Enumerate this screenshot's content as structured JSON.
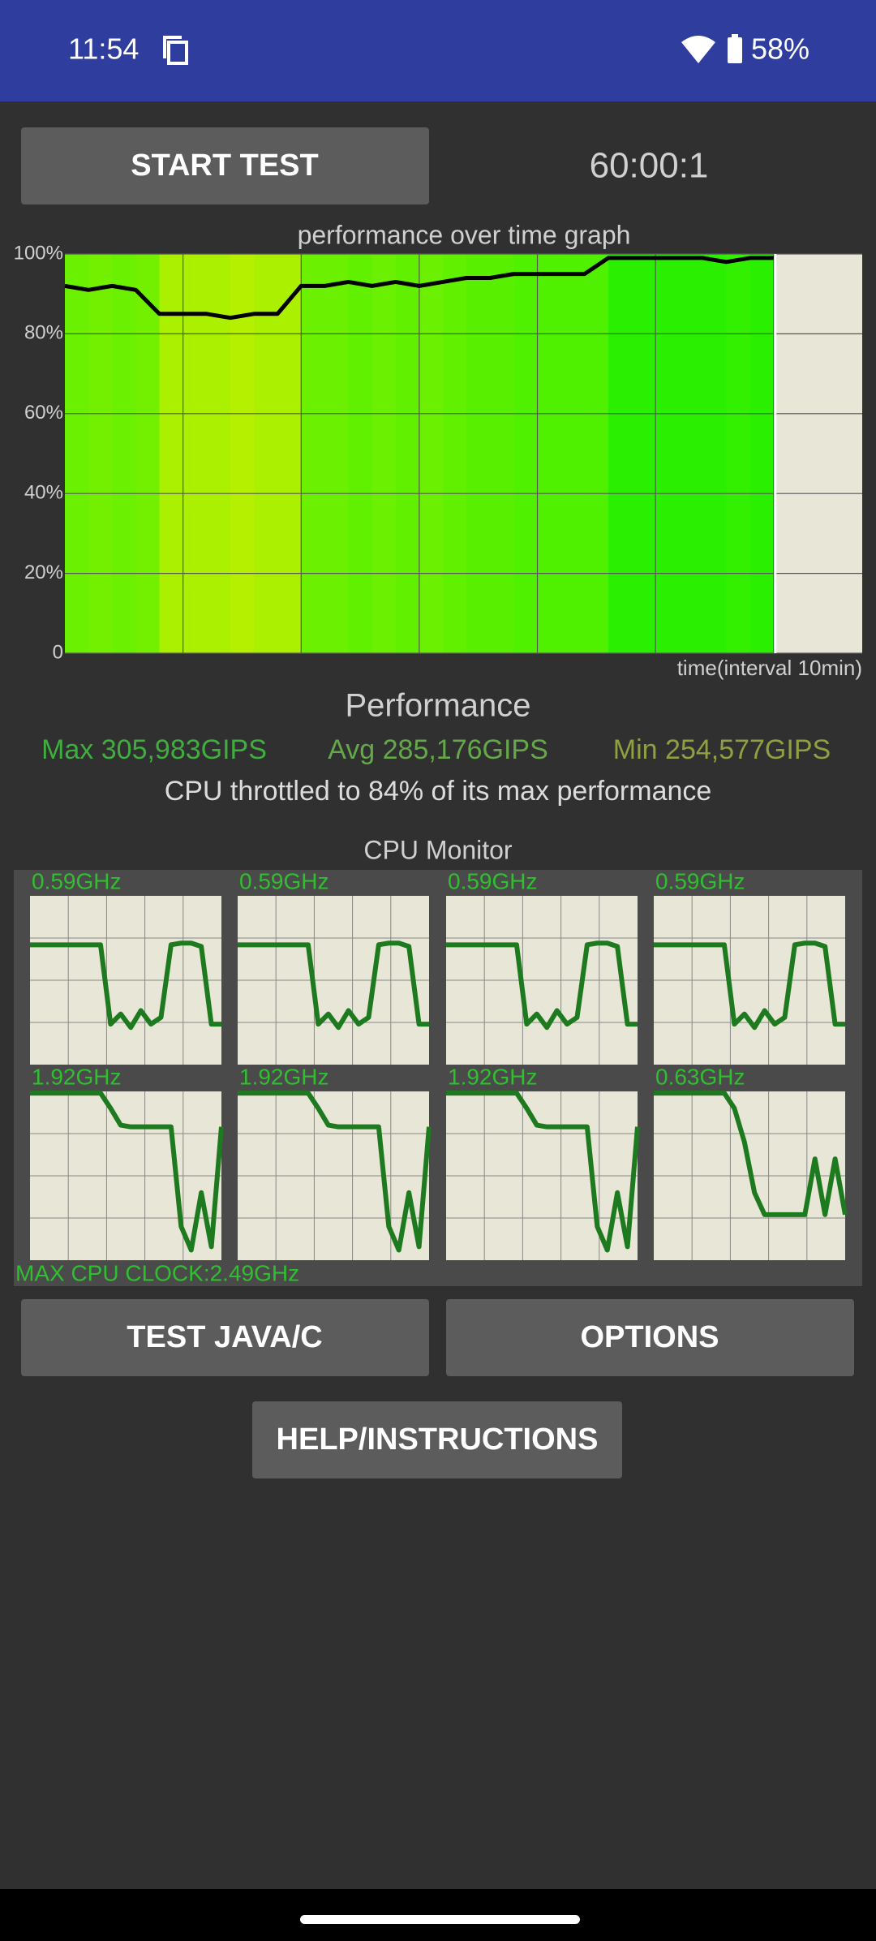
{
  "status_bar": {
    "time": "11:54",
    "battery": "58%"
  },
  "buttons": {
    "start": "START TEST",
    "test": "TEST JAVA/C",
    "options": "OPTIONS",
    "help": "HELP/INSTRUCTIONS"
  },
  "timer": "60:00:1",
  "chart_data": {
    "type": "line",
    "title": "performance over time graph",
    "x_label": "time(interval 10min)",
    "x": [
      0,
      2,
      4,
      6,
      8,
      10,
      12,
      14,
      16,
      18,
      20,
      22,
      24,
      26,
      28,
      30,
      32,
      34,
      36,
      38,
      40,
      42,
      44,
      46,
      48,
      50,
      52,
      54,
      56,
      58,
      60
    ],
    "xlim": [
      0,
      67.5
    ],
    "xticks": [
      10,
      20,
      30,
      40,
      50,
      60
    ],
    "ylim": [
      0,
      100
    ],
    "yticks": [
      0,
      {
        "value": 20,
        "label": "20%"
      },
      {
        "value": 40,
        "label": "40%"
      },
      {
        "value": 60,
        "label": "60%"
      },
      {
        "value": 80,
        "label": "80%"
      },
      {
        "value": 100,
        "label": "100%"
      }
    ],
    "grid": true,
    "series": [
      {
        "color": "#000000",
        "values": [
          92,
          91,
          92,
          91,
          85,
          85,
          85,
          84,
          85,
          85,
          92,
          92,
          93,
          92,
          93,
          92,
          93,
          94,
          94,
          95,
          95,
          95,
          95,
          99,
          99,
          99,
          99,
          99,
          98,
          99,
          99
        ]
      }
    ]
  },
  "performance": {
    "heading": "Performance",
    "max": "Max 305,983GIPS",
    "avg": "Avg 285,176GIPS",
    "min": "Min 254,577GIPS",
    "throttle": "CPU throttled to 84% of its max performance"
  },
  "cpu_monitor": {
    "title": "CPU Monitor",
    "max_clock": "MAX CPU CLOCK:2.49GHz",
    "ylim": [
      0,
      100
    ],
    "color": "#1e7a1e",
    "cores": [
      {
        "label": "0.59GHz",
        "values": [
          71,
          71,
          71,
          71,
          71,
          71,
          71,
          71,
          24,
          30,
          22,
          32,
          24,
          28,
          71,
          72,
          72,
          70,
          24,
          24
        ]
      },
      {
        "label": "0.59GHz",
        "values": [
          71,
          71,
          71,
          71,
          71,
          71,
          71,
          71,
          24,
          30,
          22,
          32,
          24,
          28,
          71,
          72,
          72,
          70,
          24,
          24
        ]
      },
      {
        "label": "0.59GHz",
        "values": [
          71,
          71,
          71,
          71,
          71,
          71,
          71,
          71,
          24,
          30,
          22,
          32,
          24,
          28,
          71,
          72,
          72,
          70,
          24,
          24
        ]
      },
      {
        "label": "0.59GHz",
        "values": [
          71,
          71,
          71,
          71,
          71,
          71,
          71,
          71,
          24,
          30,
          22,
          32,
          24,
          28,
          71,
          72,
          72,
          70,
          24,
          24
        ]
      },
      {
        "label": "1.92GHz",
        "values": [
          99,
          99,
          99,
          99,
          99,
          99,
          99,
          99,
          90,
          80,
          79,
          79,
          79,
          79,
          79,
          20,
          6,
          40,
          8,
          79
        ]
      },
      {
        "label": "1.92GHz",
        "values": [
          99,
          99,
          99,
          99,
          99,
          99,
          99,
          99,
          90,
          80,
          79,
          79,
          79,
          79,
          79,
          20,
          6,
          40,
          8,
          79
        ]
      },
      {
        "label": "1.92GHz",
        "values": [
          99,
          99,
          99,
          99,
          99,
          99,
          99,
          99,
          90,
          80,
          79,
          79,
          79,
          79,
          79,
          20,
          6,
          40,
          8,
          79
        ]
      },
      {
        "label": "0.63GHz",
        "values": [
          99,
          99,
          99,
          99,
          99,
          99,
          99,
          99,
          90,
          70,
          40,
          27,
          27,
          27,
          27,
          27,
          60,
          27,
          60,
          27
        ]
      }
    ]
  }
}
